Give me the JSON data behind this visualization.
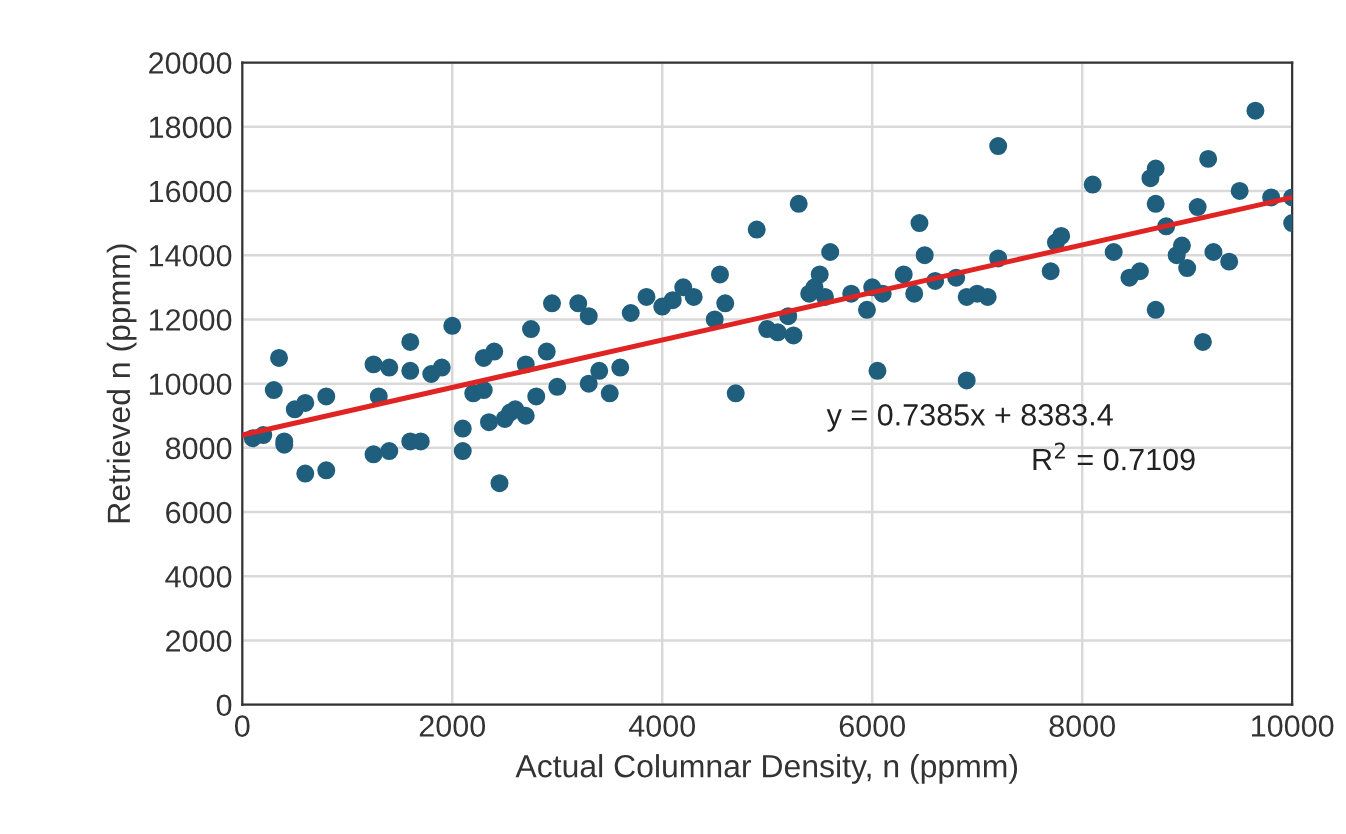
{
  "chart_data": {
    "type": "scatter",
    "xlabel": "Actual Columnar Density, n (ppmm)",
    "ylabel": "Retrieved n (ppmm)",
    "xlim": [
      0,
      10000
    ],
    "ylim": [
      0,
      20000
    ],
    "xticks": [
      0,
      2000,
      4000,
      6000,
      8000,
      10000
    ],
    "yticks": [
      0,
      2000,
      4000,
      6000,
      8000,
      10000,
      12000,
      14000,
      16000,
      18000,
      20000
    ],
    "grid": true,
    "legend": false,
    "marker": "circle",
    "annotations": [
      "y = 0.7385x + 8383.4",
      "R$^{2}$ = 0.7109"
    ],
    "series": [
      {
        "color": "#1f5e7c",
        "x": [
          100,
          200,
          300,
          350,
          400,
          400,
          500,
          600,
          600,
          800,
          800,
          1250,
          1250,
          1300,
          1400,
          1400,
          1600,
          1600,
          1700,
          1600,
          1800,
          1900,
          2000,
          2100,
          2100,
          2200,
          2300,
          2300,
          2350,
          2400,
          2450,
          2500,
          2550,
          2600,
          2700,
          2700,
          2750,
          2800,
          2900,
          2950,
          3000,
          3200,
          3300,
          3300,
          3400,
          3500,
          3600,
          3700,
          3850,
          4000,
          4100,
          4200,
          4300,
          4500,
          4550,
          4600,
          4700,
          4900,
          5000,
          5100,
          5200,
          5300,
          5250,
          5400,
          5450,
          5500,
          5600,
          5550,
          5800,
          5950,
          6000,
          6050,
          6100,
          6300,
          6400,
          6450,
          6500,
          6600,
          6800,
          6900,
          6900,
          7000,
          7100,
          7200,
          7200,
          7700,
          7750,
          7800,
          8100,
          8300,
          8450,
          8550,
          8700,
          8650,
          8700,
          8700,
          8800,
          8900,
          8950,
          9000,
          9100,
          9150,
          9200,
          9250,
          9400,
          9500,
          9650,
          9800,
          10000,
          10000
        ],
        "values": [
          8300,
          8400,
          9800,
          10800,
          8200,
          8100,
          9200,
          9400,
          7200,
          7300,
          9600,
          10600,
          7800,
          9600,
          10500,
          7900,
          10400,
          8200,
          8200,
          11300,
          10300,
          10500,
          11800,
          7900,
          8600,
          9700,
          9800,
          10800,
          8800,
          11000,
          6900,
          8900,
          9100,
          9200,
          9000,
          10600,
          11700,
          9600,
          11000,
          12500,
          9900,
          12500,
          12100,
          10000,
          10400,
          9700,
          10500,
          12200,
          12700,
          12400,
          12600,
          13000,
          12700,
          12000,
          13400,
          12500,
          9700,
          14800,
          11700,
          11600,
          12100,
          15600,
          11500,
          12800,
          13000,
          13400,
          14100,
          12700,
          12800,
          12300,
          13000,
          10400,
          12800,
          13400,
          12800,
          15000,
          14000,
          13200,
          13300,
          10100,
          12700,
          12800,
          12700,
          17400,
          13900,
          13500,
          14400,
          14600,
          16200,
          14100,
          13300,
          13500,
          16700,
          16400,
          15600,
          12300,
          14900,
          14000,
          14300,
          13600,
          15500,
          11300,
          17000,
          14100,
          13800,
          16000,
          18500,
          15800,
          15000,
          15800
        ]
      },
      {
        "type": "line",
        "color": "#e02424",
        "x": [
          0,
          10000
        ],
        "values": [
          8400,
          15800
        ],
        "marker": "none",
        "line_style": "solid"
      }
    ]
  }
}
